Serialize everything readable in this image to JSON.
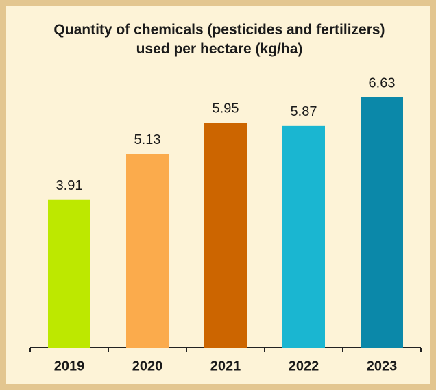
{
  "chart_data": {
    "type": "bar",
    "title": "Quantity of chemicals (pesticides and fertilizers) used per hectare (kg/ha)",
    "categories": [
      "2019",
      "2020",
      "2021",
      "2022",
      "2023"
    ],
    "values": [
      3.91,
      5.13,
      5.95,
      5.87,
      6.63
    ],
    "colors": [
      "#bde800",
      "#fbab4c",
      "#cc6500",
      "#1ab6d1",
      "#0b88a9"
    ]
  }
}
